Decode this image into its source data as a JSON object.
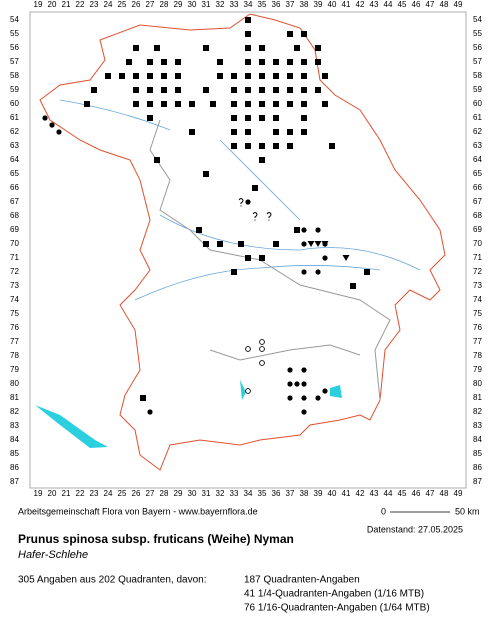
{
  "map": {
    "columns": [
      19,
      20,
      21,
      22,
      23,
      24,
      25,
      26,
      27,
      28,
      29,
      30,
      31,
      32,
      33,
      34,
      35,
      36,
      37,
      38,
      39,
      40,
      41,
      42,
      43,
      44,
      45,
      46,
      47,
      48,
      49
    ],
    "rows": [
      54,
      55,
      56,
      57,
      58,
      59,
      60,
      61,
      62,
      63,
      64,
      65,
      66,
      67,
      68,
      69,
      70,
      71,
      72,
      73,
      74,
      75,
      76,
      77,
      78,
      79,
      80,
      81,
      82,
      83,
      84,
      85,
      86,
      87
    ],
    "markers": [
      {
        "symbol": "square",
        "x": [
          34,
          34,
          37,
          38,
          26,
          27.5,
          31,
          34,
          35,
          37.5,
          39,
          25.5,
          27,
          28,
          29,
          32,
          34,
          35,
          36,
          37,
          38,
          39,
          24,
          25,
          26,
          27,
          28,
          29,
          32,
          33,
          34,
          35,
          36,
          37,
          38,
          39.5,
          23,
          26,
          27,
          28,
          29,
          31,
          33,
          34,
          35,
          36,
          37,
          38,
          39,
          22.5,
          26,
          27,
          28,
          29,
          30,
          31.5,
          33,
          34,
          35,
          36,
          37,
          38,
          39.5,
          27,
          33,
          34,
          35,
          36,
          38,
          30,
          33,
          34,
          36,
          37,
          38,
          33,
          34,
          35,
          36,
          37,
          40,
          27.5,
          35,
          31,
          34.5,
          30.5,
          37.5,
          31,
          32,
          33.5,
          36,
          34,
          35,
          33,
          42.5,
          41.5,
          26.5
        ],
        "y": [
          54,
          55,
          55,
          55,
          56,
          56,
          56,
          56,
          56,
          56,
          56,
          57,
          57,
          57,
          57,
          57,
          57,
          57,
          57,
          57,
          57,
          57,
          58,
          58,
          58,
          58,
          58,
          58,
          58,
          58,
          58,
          58,
          58,
          58,
          58,
          58,
          59,
          59,
          59,
          59,
          59,
          59,
          59,
          59,
          59,
          59,
          59,
          59,
          59,
          60,
          60,
          60,
          60,
          60,
          60,
          60,
          60,
          60,
          60,
          60,
          60,
          60,
          60,
          61,
          61,
          61,
          61,
          61,
          61,
          62,
          62,
          62,
          62,
          62,
          62,
          63,
          63,
          63,
          63,
          63,
          63,
          64,
          64,
          65,
          66,
          69,
          69,
          70,
          70,
          70,
          70,
          71,
          71,
          72,
          72,
          73,
          81
        ]
      },
      {
        "symbol": "dot",
        "x": [
          19.5,
          20,
          20.5,
          34,
          38,
          39,
          38,
          39.5,
          34,
          38,
          39.5,
          39,
          37,
          38,
          37,
          37.5,
          38,
          39.5,
          37,
          38,
          39,
          27,
          38
        ],
        "y": [
          61,
          61.5,
          62,
          67,
          69,
          69,
          70,
          70,
          71,
          72,
          71,
          72,
          79,
          79,
          80,
          80,
          80,
          80.5,
          81,
          81,
          81,
          82,
          82
        ]
      },
      {
        "symbol": "circle",
        "x": [
          35,
          34,
          35,
          35,
          34
        ],
        "y": [
          77,
          77.5,
          77.5,
          78.5,
          80.5
        ]
      },
      {
        "symbol": "triangle",
        "x": [
          38.5,
          39,
          39.5,
          41
        ],
        "y": [
          70,
          70,
          70,
          71
        ]
      },
      {
        "symbol": "question",
        "x": [
          33.5,
          34.5,
          35.5
        ],
        "y": [
          67,
          68,
          68
        ]
      }
    ],
    "credit": "Arbeitsgemeinschaft Flora von Bayern - www.bayernflora.de",
    "scale_start": "0",
    "scale_end": "50 km",
    "date": "Datenstand: 27.05.2025",
    "title": "Prunus spinosa subsp. fruticans (Weihe) Nyman",
    "subtitle": "Hafer-Schlehe",
    "summary": "305 Angaben aus 202 Quadranten, davon:",
    "counts": [
      "187 Quadranten-Angaben",
      "41 1/4-Quadranten-Angaben (1/16 MTB)",
      "76 1/16-Quadranten-Angaben (1/64 MTB)"
    ]
  }
}
